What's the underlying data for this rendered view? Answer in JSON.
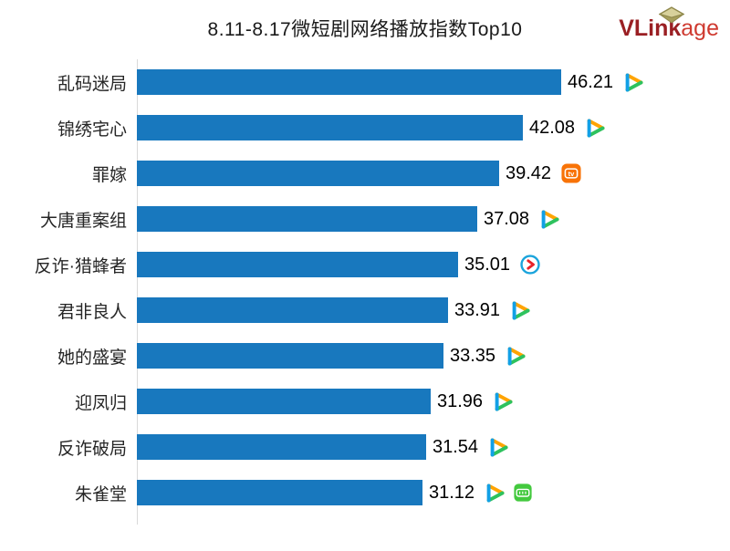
{
  "title": "8.11-8.17微短剧网络播放指数Top10",
  "logo": {
    "bold": "VLink",
    "light": "age"
  },
  "colors": {
    "bar": "#1878be",
    "logo_dark": "#9a1f23",
    "logo_light": "#cf3a30",
    "axis_line": "#d9d9d9",
    "tencent_orange": "#ffa400",
    "tencent_green": "#2ec25e",
    "tencent_blue": "#12a0e6",
    "mango_orange": "#f87307",
    "youku_blue": "#1ba4dc",
    "youku_red": "#e8232a",
    "green_tv": "#43c93e"
  },
  "chart_data": {
    "type": "bar",
    "orientation": "horizontal",
    "title": "8.11-8.17微短剧网络播放指数Top10",
    "xlabel": "",
    "ylabel": "",
    "xlim": [
      0,
      50
    ],
    "grid": false,
    "legend": "none",
    "categories": [
      "乱码迷局",
      "锦绣宅心",
      "罪嫁",
      "大唐重案组",
      "反诈·猎蜂者",
      "君非良人",
      "她的盛宴",
      "迎凤归",
      "反诈破局",
      "朱雀堂"
    ],
    "values": [
      46.21,
      42.08,
      39.42,
      37.08,
      35.01,
      33.91,
      33.35,
      31.96,
      31.54,
      31.12
    ],
    "value_labels": [
      "46.21",
      "42.08",
      "39.42",
      "37.08",
      "35.01",
      "33.91",
      "33.35",
      "31.96",
      "31.54",
      "31.12"
    ],
    "platform_icons": [
      [
        "tencent-video"
      ],
      [
        "tencent-video"
      ],
      [
        "mango-tv"
      ],
      [
        "tencent-video"
      ],
      [
        "youku"
      ],
      [
        "tencent-video"
      ],
      [
        "tencent-video"
      ],
      [
        "tencent-video"
      ],
      [
        "tencent-video"
      ],
      [
        "tencent-video",
        "green-tv"
      ]
    ]
  }
}
